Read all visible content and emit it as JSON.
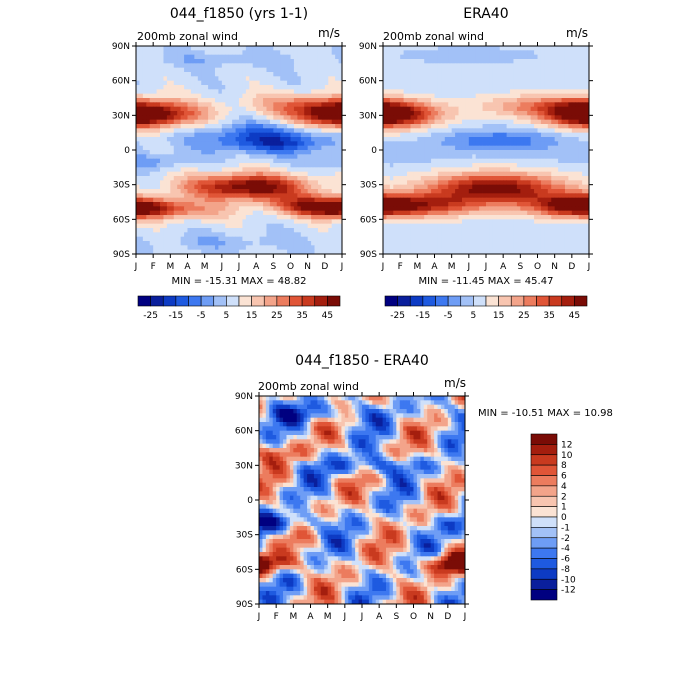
{
  "chart_data": [
    {
      "type": "heatmap",
      "title": "044_f1850 (yrs 1-1)",
      "subtitle_left": "200mb zonal wind",
      "subtitle_right": "m/s",
      "stats": "MIN = -15.31 MAX =  48.82",
      "x_tick_labels": [
        "J",
        "F",
        "M",
        "A",
        "M",
        "J",
        "J",
        "A",
        "S",
        "O",
        "N",
        "D",
        "J"
      ],
      "y_tick_labels": [
        "90N",
        "60N",
        "30N",
        "0",
        "30S",
        "60S",
        "90S"
      ],
      "y_tick_values": [
        90,
        60,
        30,
        0,
        -30,
        -60,
        -90
      ],
      "colorbar_labels": [
        "-25",
        "-15",
        "-5",
        "5",
        "15",
        "25",
        "35",
        "45"
      ],
      "colorbar_orientation": "horizontal",
      "grid": false
    },
    {
      "type": "heatmap",
      "title": "ERA40",
      "subtitle_left": "200mb zonal wind",
      "subtitle_right": "m/s",
      "stats": "MIN = -11.45 MAX =  45.47",
      "x_tick_labels": [
        "J",
        "F",
        "M",
        "A",
        "M",
        "J",
        "J",
        "A",
        "S",
        "O",
        "N",
        "D",
        "J"
      ],
      "y_tick_labels": [
        "90N",
        "60N",
        "30N",
        "0",
        "30S",
        "60S",
        "90S"
      ],
      "y_tick_values": [
        90,
        60,
        30,
        0,
        -30,
        -60,
        -90
      ],
      "colorbar_labels": [
        "-25",
        "-15",
        "-5",
        "5",
        "15",
        "25",
        "35",
        "45"
      ],
      "colorbar_orientation": "horizontal",
      "grid": false
    },
    {
      "type": "heatmap",
      "title": "044_f1850 - ERA40",
      "subtitle_left": "200mb zonal wind",
      "subtitle_right": "m/s",
      "stats": "MIN = -10.51 MAX =  10.98",
      "x_tick_labels": [
        "J",
        "F",
        "M",
        "A",
        "M",
        "J",
        "J",
        "A",
        "S",
        "O",
        "N",
        "D",
        "J"
      ],
      "y_tick_labels": [
        "90N",
        "60N",
        "30N",
        "0",
        "30S",
        "60S",
        "90S"
      ],
      "y_tick_values": [
        90,
        60,
        30,
        0,
        -30,
        -60,
        -90
      ],
      "colorbar_labels": [
        "12",
        "10",
        "8",
        "6",
        "4",
        "2",
        "1",
        "0",
        "-1",
        "-2",
        "-4",
        "-6",
        "-8",
        "-10",
        "-12"
      ],
      "colorbar_orientation": "vertical",
      "grid": false
    }
  ],
  "palettes": {
    "wind": [
      "#000080",
      "#0a1f9c",
      "#0d3bc4",
      "#1e5ae0",
      "#3d78f0",
      "#6e9df5",
      "#a2c1f7",
      "#cfe0fa",
      "#fbe3d4",
      "#f8c5b0",
      "#f3a48a",
      "#ec7c5e",
      "#e05537",
      "#c93a1f",
      "#a41e0e",
      "#7a0c06"
    ],
    "diff": [
      "#000080",
      "#0a1f9c",
      "#0d3bc4",
      "#1e5ae0",
      "#3d78f0",
      "#6e9df5",
      "#a2c1f7",
      "#cfe0fa",
      "#fbe3d4",
      "#f8c5b0",
      "#f3a48a",
      "#ec7c5e",
      "#e05537",
      "#c93a1f",
      "#a41e0e",
      "#7a0c06"
    ]
  }
}
